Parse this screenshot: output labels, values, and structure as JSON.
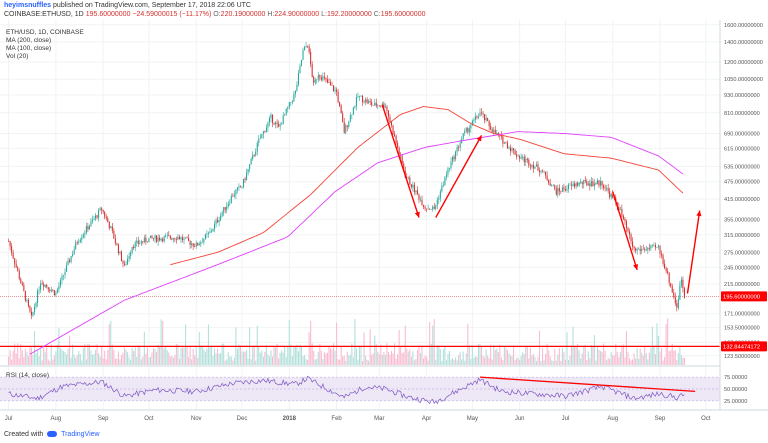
{
  "header": {
    "author": "heyimsnuffles",
    "published_text": "published on TradingView.com, September 17, 2018 22:06 UTC",
    "symbol": "COINBASE:ETHUSD, 1D",
    "last": "195.60000000",
    "change": "−24.59000015 (−11.17%)",
    "o_label": "O:",
    "o": "220.19000000",
    "h_label": "H:",
    "h": "224.90000000",
    "l_label": "L:",
    "l": "192.20000000",
    "c_label": "C:",
    "c": "195.60000000"
  },
  "legend": {
    "title": "ETH/USD, 1D, COINBASE",
    "ma200": "MA (200, close)",
    "ma100": "MA (100, close)",
    "vol": "Vol (20)"
  },
  "rsi_label": "RSI (14, close)",
  "footer": {
    "created_with": "Created with",
    "brand": "TradingView"
  },
  "colors": {
    "up": "#26a69a",
    "down": "#d32f2f",
    "ma100": "#f44336",
    "ma200": "#e040fb",
    "annotation": "#ff0000",
    "rsi": "#7e57c2",
    "rsi_band": "#ede7f6",
    "vol_up": "#b2dfdb",
    "vol_down": "#f8bbd0"
  },
  "chart_data": {
    "type": "candlestick",
    "symbol": "ETH/USD",
    "timeframe": "1D",
    "exchange": "COINBASE",
    "ylim": [
      115,
      1610
    ],
    "y_ticks": [
      "1600.00000000",
      "1400.00000000",
      "1200.00000000",
      "1050.00000000",
      "930.00000000",
      "810.00000000",
      "690.00000000",
      "615.00000000",
      "535.00000000",
      "475.00000000",
      "415.00000000",
      "355.00000000",
      "315.00000000",
      "275.00000000",
      "245.00000000",
      "215.00000000",
      "171.00000000",
      "153.50000000",
      "137.00000000",
      "123.50000000"
    ],
    "x_ticks": [
      "Jul",
      "Aug",
      "Sep",
      "Oct",
      "Nov",
      "Dec",
      "2018",
      "Feb",
      "Mar",
      "Apr",
      "May",
      "Jun",
      "Jul",
      "Aug",
      "Sep",
      "Oct"
    ],
    "price_keypoints": [
      [
        "2017-07-01",
        300
      ],
      [
        "2017-07-16",
        165
      ],
      [
        "2017-07-22",
        220
      ],
      [
        "2017-08-01",
        200
      ],
      [
        "2017-08-15",
        300
      ],
      [
        "2017-08-31",
        385
      ],
      [
        "2017-09-06",
        330
      ],
      [
        "2017-09-15",
        245
      ],
      [
        "2017-09-20",
        290
      ],
      [
        "2017-10-01",
        305
      ],
      [
        "2017-10-20",
        310
      ],
      [
        "2017-11-01",
        290
      ],
      [
        "2017-11-10",
        320
      ],
      [
        "2017-11-25",
        430
      ],
      [
        "2017-12-01",
        460
      ],
      [
        "2017-12-12",
        650
      ],
      [
        "2017-12-20",
        780
      ],
      [
        "2017-12-25",
        720
      ],
      [
        "2018-01-05",
        950
      ],
      [
        "2018-01-10",
        1300
      ],
      [
        "2018-01-13",
        1380
      ],
      [
        "2018-01-17",
        1000
      ],
      [
        "2018-01-20",
        1100
      ],
      [
        "2018-02-01",
        950
      ],
      [
        "2018-02-06",
        700
      ],
      [
        "2018-02-15",
        920
      ],
      [
        "2018-02-25",
        860
      ],
      [
        "2018-03-05",
        860
      ],
      [
        "2018-03-18",
        500
      ],
      [
        "2018-03-31",
        390
      ],
      [
        "2018-04-06",
        385
      ],
      [
        "2018-04-15",
        520
      ],
      [
        "2018-04-25",
        680
      ],
      [
        "2018-05-06",
        810
      ],
      [
        "2018-05-15",
        700
      ],
      [
        "2018-05-31",
        580
      ],
      [
        "2018-06-15",
        520
      ],
      [
        "2018-06-25",
        440
      ],
      [
        "2018-07-10",
        470
      ],
      [
        "2018-07-25",
        470
      ],
      [
        "2018-08-05",
        390
      ],
      [
        "2018-08-15",
        280
      ],
      [
        "2018-08-31",
        285
      ],
      [
        "2018-09-05",
        240
      ],
      [
        "2018-09-12",
        180
      ],
      [
        "2018-09-15",
        225
      ],
      [
        "2018-09-17",
        195.6
      ]
    ],
    "ma100_keypoints": [
      [
        "2017-10-15",
        250
      ],
      [
        "2017-11-15",
        275
      ],
      [
        "2017-12-15",
        320
      ],
      [
        "2018-01-15",
        430
      ],
      [
        "2018-02-15",
        620
      ],
      [
        "2018-03-15",
        800
      ],
      [
        "2018-03-30",
        850
      ],
      [
        "2018-04-15",
        830
      ],
      [
        "2018-05-01",
        740
      ],
      [
        "2018-05-15",
        690
      ],
      [
        "2018-06-01",
        660
      ],
      [
        "2018-06-30",
        590
      ],
      [
        "2018-07-31",
        570
      ],
      [
        "2018-08-31",
        520
      ],
      [
        "2018-09-17",
        430
      ]
    ],
    "ma200_keypoints": [
      [
        "2017-07-15",
        125
      ],
      [
        "2017-09-15",
        190
      ],
      [
        "2017-11-15",
        250
      ],
      [
        "2017-12-31",
        310
      ],
      [
        "2018-01-31",
        440
      ],
      [
        "2018-02-28",
        550
      ],
      [
        "2018-03-31",
        620
      ],
      [
        "2018-04-30",
        660
      ],
      [
        "2018-05-31",
        700
      ],
      [
        "2018-06-30",
        690
      ],
      [
        "2018-07-31",
        670
      ],
      [
        "2018-08-31",
        580
      ],
      [
        "2018-09-17",
        500
      ]
    ],
    "price_label": "195.60000000",
    "support_label": "132.84474172",
    "support_value": 132.84,
    "annotations": {
      "arrow_1": {
        "from": [
          "2018-03-03",
          860
        ],
        "to": [
          "2018-03-27",
          360
        ]
      },
      "arrow_2": {
        "from": [
          "2018-04-07",
          360
        ],
        "to": [
          "2018-05-07",
          680
        ]
      },
      "arrow_3": {
        "from": [
          "2018-08-01",
          440
        ],
        "to": [
          "2018-08-17",
          240
        ]
      },
      "arrow_4": {
        "from": [
          "2018-09-19",
          200
        ],
        "to": [
          "2018-09-27",
          380
        ]
      }
    },
    "rsi": {
      "y_ticks": [
        "75.00000",
        "50.00000",
        "25.00000"
      ],
      "ylim": [
        10,
        90
      ],
      "keypoints": [
        [
          "2017-07-01",
          40
        ],
        [
          "2017-07-20",
          30
        ],
        [
          "2017-08-05",
          55
        ],
        [
          "2017-08-31",
          65
        ],
        [
          "2017-09-15",
          35
        ],
        [
          "2017-10-05",
          48
        ],
        [
          "2017-11-01",
          45
        ],
        [
          "2017-11-25",
          62
        ],
        [
          "2017-12-15",
          68
        ],
        [
          "2018-01-05",
          60
        ],
        [
          "2018-01-13",
          72
        ],
        [
          "2018-02-06",
          32
        ],
        [
          "2018-02-20",
          55
        ],
        [
          "2018-03-05",
          50
        ],
        [
          "2018-03-20",
          33
        ],
        [
          "2018-04-06",
          22
        ],
        [
          "2018-05-06",
          70
        ],
        [
          "2018-05-20",
          45
        ],
        [
          "2018-06-10",
          40
        ],
        [
          "2018-07-01",
          35
        ],
        [
          "2018-07-25",
          55
        ],
        [
          "2018-08-15",
          30
        ],
        [
          "2018-09-01",
          40
        ],
        [
          "2018-09-12",
          32
        ],
        [
          "2018-09-17",
          38
        ]
      ],
      "trendline": {
        "from": [
          "2018-05-06",
          75
        ],
        "to": [
          "2018-09-24",
          45
        ]
      }
    }
  }
}
